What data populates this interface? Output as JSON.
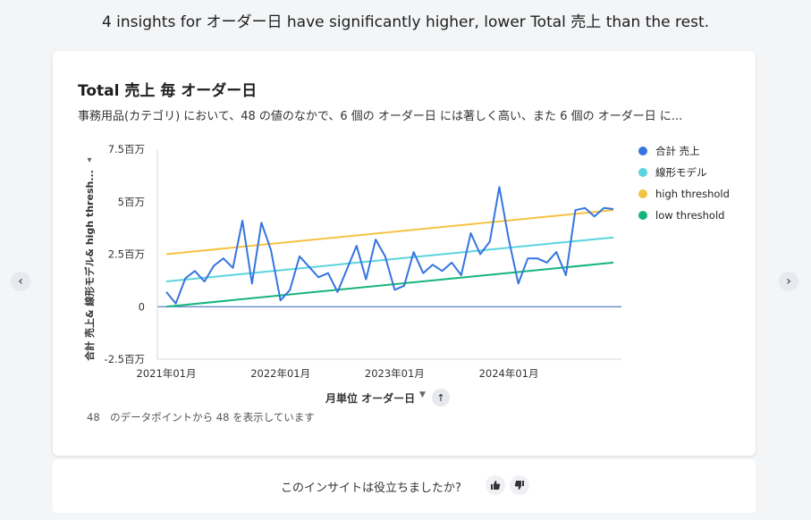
{
  "headline": "4 insights for オーダー日 have significantly higher, lower Total 売上 than the rest.",
  "card": {
    "title": "Total 売上 毎 オーダー日",
    "subtitle": "事務用品(カテゴリ) において、48 の値のなかで、6 個の オーダー日 には著しく高い、また 6 個の オーダー日 に..."
  },
  "nav": {
    "prev_label": "‹",
    "next_label": "›"
  },
  "axis_controls": {
    "x_title": "月単位 オーダー日",
    "caret": "▼",
    "sort_icon": "↑",
    "y_caret": "▾"
  },
  "count_text": "48　のデータポイントから 48 を表示しています",
  "feedback": {
    "question": "このインサイトは役立ちましたか?",
    "thumbs_up_icon": "thumbs-up-icon",
    "thumbs_down_icon": "thumbs-down-icon"
  },
  "colors": {
    "total": "#3574e0",
    "model": "#5ad4de",
    "high": "#f5c342",
    "low": "#15b579"
  },
  "chart_data": {
    "type": "line",
    "title": "Total 売上 毎 オーダー日",
    "xlabel": "月単位 オーダー日",
    "ylabel": "合計 売上& 線形モデル& high thresh...",
    "x_range": [
      "2021-01",
      "2024-12"
    ],
    "x_ticks": [
      "2021年01月",
      "2022年01月",
      "2023年01月",
      "2024年01月"
    ],
    "y_ticks": [
      "-2.5百万",
      "0",
      "2.5百万",
      "5百万",
      "7.5百万"
    ],
    "y_tick_values": [
      -2500000,
      0,
      2500000,
      5000000,
      7500000
    ],
    "ylim": [
      -2500000,
      7500000
    ],
    "legend_position": "right",
    "series": [
      {
        "name": "合計 売上",
        "values": [
          700000,
          150000,
          1350000,
          1700000,
          1200000,
          1950000,
          2300000,
          1850000,
          4100000,
          1100000,
          4000000,
          2700000,
          300000,
          800000,
          2400000,
          1900000,
          1400000,
          1600000,
          700000,
          1800000,
          2900000,
          1300000,
          3200000,
          2400000,
          800000,
          1000000,
          2600000,
          1600000,
          2000000,
          1700000,
          2100000,
          1500000,
          3500000,
          2500000,
          3100000,
          5700000,
          3200000,
          1100000,
          2300000,
          2300000,
          2100000,
          2600000,
          1500000,
          4600000,
          4700000,
          4300000,
          4700000,
          4650000
        ]
      },
      {
        "name": "線形モデル",
        "start": 1200000,
        "end": 3300000
      },
      {
        "name": "high threshold",
        "start": 2500000,
        "end": 4600000
      },
      {
        "name": "low threshold",
        "start": 0,
        "end": 2100000
      }
    ]
  }
}
